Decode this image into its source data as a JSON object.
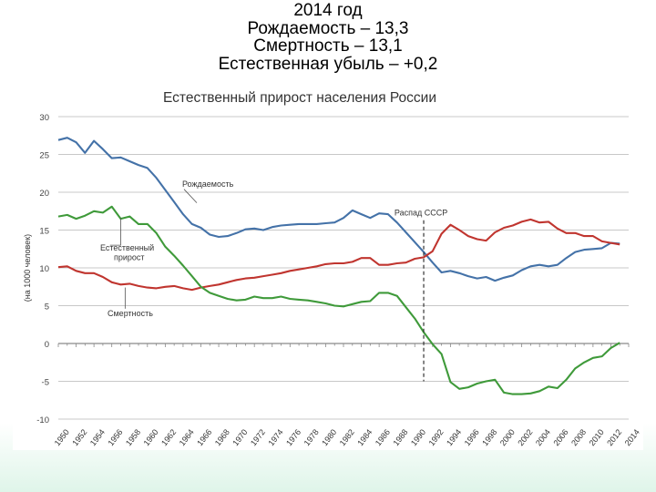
{
  "slide": {
    "lines": [
      "2014 год",
      "Рождаемость – 13,3",
      "Смертность – 13,1",
      "Естественная убыль – +0,2"
    ]
  },
  "chart_data": {
    "type": "line",
    "title": "Естественный прирост населения России",
    "ylabel": "(на 1000 человек)",
    "xlabel": "",
    "ylim": [
      -10,
      30
    ],
    "yticks": [
      -10,
      -5,
      0,
      5,
      10,
      15,
      20,
      25,
      30
    ],
    "xlim": [
      1950,
      2014
    ],
    "xticks": [
      1950,
      1952,
      1954,
      1956,
      1958,
      1960,
      1962,
      1964,
      1966,
      1968,
      1970,
      1972,
      1974,
      1976,
      1978,
      1980,
      1982,
      1984,
      1986,
      1988,
      1990,
      1992,
      1994,
      1996,
      1998,
      2000,
      2002,
      2004,
      2006,
      2008,
      2010,
      2012,
      2014
    ],
    "grid": true,
    "annotation": {
      "label": "Распад СССР",
      "x": 1991
    },
    "series": [
      {
        "name": "Рождаемость",
        "color": "#4472a8",
        "x": [
          1950,
          1951,
          1952,
          1953,
          1954,
          1955,
          1956,
          1957,
          1958,
          1959,
          1960,
          1961,
          1962,
          1963,
          1964,
          1965,
          1966,
          1967,
          1968,
          1969,
          1970,
          1971,
          1972,
          1973,
          1974,
          1975,
          1976,
          1977,
          1978,
          1979,
          1980,
          1981,
          1982,
          1983,
          1984,
          1985,
          1986,
          1987,
          1988,
          1989,
          1990,
          1991,
          1992,
          1993,
          1994,
          1995,
          1996,
          1997,
          1998,
          1999,
          2000,
          2001,
          2002,
          2003,
          2004,
          2005,
          2006,
          2007,
          2008,
          2009,
          2010,
          2011,
          2012,
          2013
        ],
        "values": [
          26.9,
          27.2,
          26.6,
          25.2,
          26.8,
          25.7,
          24.5,
          24.6,
          24.1,
          23.6,
          23.2,
          21.9,
          20.3,
          18.7,
          17.1,
          15.8,
          15.3,
          14.4,
          14.1,
          14.2,
          14.6,
          15.1,
          15.2,
          15.0,
          15.4,
          15.6,
          15.7,
          15.8,
          15.8,
          15.8,
          15.9,
          16.0,
          16.6,
          17.6,
          17.1,
          16.6,
          17.2,
          17.1,
          16.0,
          14.7,
          13.4,
          12.1,
          10.7,
          9.4,
          9.6,
          9.3,
          8.9,
          8.6,
          8.8,
          8.3,
          8.7,
          9.0,
          9.7,
          10.2,
          10.4,
          10.2,
          10.4,
          11.3,
          12.1,
          12.4,
          12.5,
          12.6,
          13.3,
          13.2
        ]
      },
      {
        "name": "Смертность",
        "color": "#c0352f",
        "x": [
          1950,
          1951,
          1952,
          1953,
          1954,
          1955,
          1956,
          1957,
          1958,
          1959,
          1960,
          1961,
          1962,
          1963,
          1964,
          1965,
          1966,
          1967,
          1968,
          1969,
          1970,
          1971,
          1972,
          1973,
          1974,
          1975,
          1976,
          1977,
          1978,
          1979,
          1980,
          1981,
          1982,
          1983,
          1984,
          1985,
          1986,
          1987,
          1988,
          1989,
          1990,
          1991,
          1992,
          1993,
          1994,
          1995,
          1996,
          1997,
          1998,
          1999,
          2000,
          2001,
          2002,
          2003,
          2004,
          2005,
          2006,
          2007,
          2008,
          2009,
          2010,
          2011,
          2012,
          2013
        ],
        "values": [
          10.1,
          10.2,
          9.6,
          9.3,
          9.3,
          8.8,
          8.1,
          7.8,
          7.9,
          7.6,
          7.4,
          7.3,
          7.5,
          7.6,
          7.3,
          7.1,
          7.4,
          7.6,
          7.8,
          8.1,
          8.4,
          8.6,
          8.7,
          8.9,
          9.1,
          9.3,
          9.6,
          9.8,
          10.0,
          10.2,
          10.5,
          10.6,
          10.6,
          10.8,
          11.3,
          11.3,
          10.4,
          10.4,
          10.6,
          10.7,
          11.2,
          11.4,
          12.2,
          14.5,
          15.7,
          15.0,
          14.2,
          13.8,
          13.6,
          14.7,
          15.3,
          15.6,
          16.1,
          16.4,
          16.0,
          16.1,
          15.2,
          14.6,
          14.6,
          14.2,
          14.2,
          13.5,
          13.3,
          13.1
        ]
      },
      {
        "name": "Естественный прирост",
        "color": "#3f9a3a",
        "x": [
          1950,
          1951,
          1952,
          1953,
          1954,
          1955,
          1956,
          1957,
          1958,
          1959,
          1960,
          1961,
          1962,
          1963,
          1964,
          1965,
          1966,
          1967,
          1968,
          1969,
          1970,
          1971,
          1972,
          1973,
          1974,
          1975,
          1976,
          1977,
          1978,
          1979,
          1980,
          1981,
          1982,
          1983,
          1984,
          1985,
          1986,
          1987,
          1988,
          1989,
          1990,
          1991,
          1992,
          1993,
          1994,
          1995,
          1996,
          1997,
          1998,
          1999,
          2000,
          2001,
          2002,
          2003,
          2004,
          2005,
          2006,
          2007,
          2008,
          2009,
          2010,
          2011,
          2012,
          2013
        ],
        "values": [
          16.8,
          17.0,
          16.5,
          16.9,
          17.5,
          17.3,
          18.1,
          16.5,
          16.8,
          15.8,
          15.8,
          14.6,
          12.8,
          11.6,
          10.3,
          8.9,
          7.5,
          6.7,
          6.3,
          5.9,
          5.7,
          5.8,
          6.2,
          6.0,
          6.0,
          6.2,
          5.9,
          5.8,
          5.7,
          5.5,
          5.3,
          5.0,
          4.9,
          5.2,
          5.5,
          5.6,
          6.7,
          6.7,
          6.3,
          4.8,
          3.3,
          1.5,
          -0.1,
          -1.4,
          -5.1,
          -6.0,
          -5.8,
          -5.3,
          -5.0,
          -4.8,
          -6.5,
          -6.7,
          -6.7,
          -6.6,
          -6.3,
          -5.7,
          -5.9,
          -4.8,
          -3.3,
          -2.5,
          -1.9,
          -1.7,
          -0.6,
          0.1
        ]
      }
    ],
    "series_labels": [
      "Рождаемость",
      "Естественный\nприрост",
      "Смертность"
    ]
  }
}
